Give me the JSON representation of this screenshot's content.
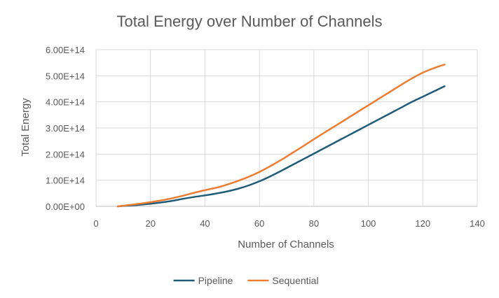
{
  "chart_data": {
    "type": "line",
    "title": "Total Energy over Number of Channels",
    "xlabel": "Number of Channels",
    "ylabel": "Total Energy",
    "xlim": [
      0,
      140
    ],
    "ylim": [
      0,
      600000000000000.0
    ],
    "x_ticks": [
      0,
      20,
      40,
      60,
      80,
      100,
      120,
      140
    ],
    "x_tick_labels": [
      "0",
      "20",
      "40",
      "60",
      "80",
      "100",
      "120",
      "140"
    ],
    "y_ticks": [
      0,
      100000000000000.0,
      200000000000000.0,
      300000000000000.0,
      400000000000000.0,
      500000000000000.0,
      600000000000000.0
    ],
    "y_tick_labels": [
      "0.00E+00",
      "1.00E+14",
      "2.00E+14",
      "3.00E+14",
      "4.00E+14",
      "5.00E+14",
      "6.00E+14"
    ],
    "grid": true,
    "legend_position": "bottom",
    "series": [
      {
        "name": "Pipeline",
        "color": "#1f5c7a",
        "x": [
          8,
          12,
          16,
          20,
          24,
          28,
          32,
          36,
          40,
          44,
          48,
          52,
          56,
          60,
          64,
          68,
          72,
          76,
          80,
          84,
          88,
          92,
          96,
          100,
          104,
          108,
          112,
          116,
          120,
          124,
          128
        ],
        "y": [
          0.0,
          3000000000000.0,
          6000000000000.0,
          10000000000000.0,
          15000000000000.0,
          21000000000000.0,
          29000000000000.0,
          36000000000000.0,
          42000000000000.0,
          49000000000000.0,
          57000000000000.0,
          67000000000000.0,
          80000000000000.0,
          96000000000000.0,
          115000000000000.0,
          136000000000000.0,
          158000000000000.0,
          180000000000000.0,
          202000000000000.0,
          224000000000000.0,
          246000000000000.0,
          268000000000000.0,
          290000000000000.0,
          312000000000000.0,
          334000000000000.0,
          356000000000000.0,
          378000000000000.0,
          400000000000000.0,
          420000000000000.0,
          440000000000000.0,
          460000000000000.0
        ]
      },
      {
        "name": "Sequential",
        "color": "#ed7d31",
        "x": [
          8,
          12,
          16,
          20,
          24,
          28,
          32,
          36,
          40,
          44,
          48,
          52,
          56,
          60,
          64,
          68,
          72,
          76,
          80,
          84,
          88,
          92,
          96,
          100,
          104,
          108,
          112,
          116,
          120,
          124,
          128
        ],
        "y": [
          0.0,
          5000000000000.0,
          10000000000000.0,
          16000000000000.0,
          23000000000000.0,
          31000000000000.0,
          41000000000000.0,
          52000000000000.0,
          62000000000000.0,
          71000000000000.0,
          83000000000000.0,
          97000000000000.0,
          113000000000000.0,
          132000000000000.0,
          154000000000000.0,
          178000000000000.0,
          204000000000000.0,
          230000000000000.0,
          257000000000000.0,
          283000000000000.0,
          309000000000000.0,
          335000000000000.0,
          361000000000000.0,
          387000000000000.0,
          413000000000000.0,
          439000000000000.0,
          465000000000000.0,
          490000000000000.0,
          512000000000000.0,
          529000000000000.0,
          543000000000000.0
        ]
      }
    ]
  }
}
